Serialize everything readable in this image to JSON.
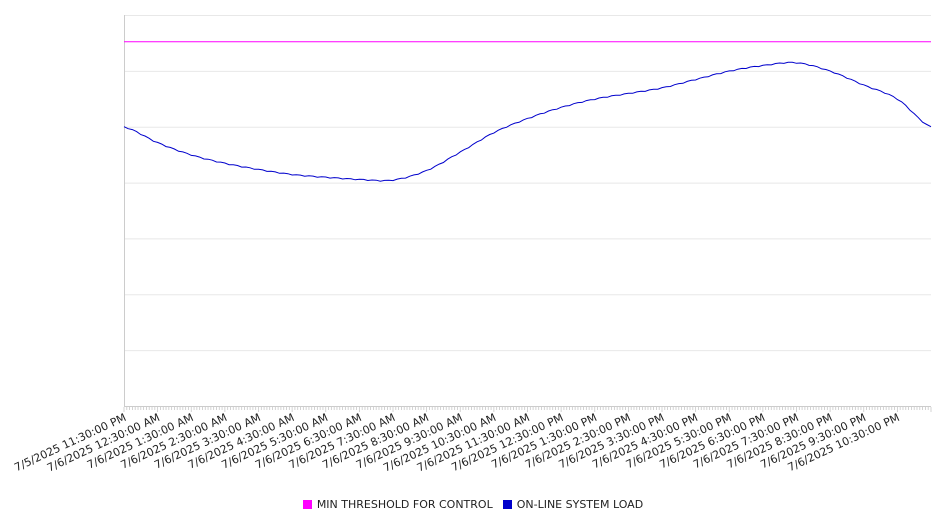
{
  "chart_data": {
    "type": "line",
    "title": "",
    "xlabel": "",
    "ylabel": "",
    "grid": true,
    "legend_position": "bottom",
    "ylim": [
      0,
      7
    ],
    "x_tick_labels": [
      "7/5/2025 11:30:00 PM",
      "7/6/2025 12:30:00 AM",
      "7/6/2025 1:30:00 AM",
      "7/6/2025 2:30:00 AM",
      "7/6/2025 3:30:00 AM",
      "7/6/2025 4:30:00 AM",
      "7/6/2025 5:30:00 AM",
      "7/6/2025 6:30:00 AM",
      "7/6/2025 7:30:00 AM",
      "7/6/2025 8:30:00 AM",
      "7/6/2025 9:30:00 AM",
      "7/6/2025 10:30:00 AM",
      "7/6/2025 11:30:00 AM",
      "7/6/2025 12:30:00 PM",
      "7/6/2025 1:30:00 PM",
      "7/6/2025 2:30:00 PM",
      "7/6/2025 3:30:00 PM",
      "7/6/2025 4:30:00 PM",
      "7/6/2025 5:30:00 PM",
      "7/6/2025 6:30:00 PM",
      "7/6/2025 7:30:00 PM",
      "7/6/2025 8:30:00 PM",
      "7/6/2025 9:30:00 PM",
      "7/6/2025 10:30:00 PM"
    ],
    "x": [
      "7/5/2025 11:30:00 PM",
      "7/6/2025 12:30:00 AM",
      "7/6/2025 1:30:00 AM",
      "7/6/2025 2:30:00 AM",
      "7/6/2025 3:30:00 AM",
      "7/6/2025 4:30:00 AM",
      "7/6/2025 5:30:00 AM",
      "7/6/2025 6:30:00 AM",
      "7/6/2025 7:30:00 AM",
      "7/6/2025 8:30:00 AM",
      "7/6/2025 9:30:00 AM",
      "7/6/2025 10:30:00 AM",
      "7/6/2025 11:30:00 AM",
      "7/6/2025 12:30:00 PM",
      "7/6/2025 1:30:00 PM",
      "7/6/2025 2:30:00 PM",
      "7/6/2025 3:30:00 PM",
      "7/6/2025 4:30:00 PM",
      "7/6/2025 5:30:00 PM",
      "7/6/2025 6:30:00 PM",
      "7/6/2025 7:30:00 PM",
      "7/6/2025 8:30:00 PM",
      "7/6/2025 9:30:00 PM",
      "7/6/2025 10:30:00 PM",
      "7/6/2025 11:30:00 PM"
    ],
    "series": [
      {
        "name": "MIN THRESHOLD FOR CONTROL",
        "color": "#ff00ff",
        "values": [
          6.52,
          6.52,
          6.52,
          6.52,
          6.52,
          6.52,
          6.52,
          6.52,
          6.52,
          6.52,
          6.52,
          6.52,
          6.52,
          6.52,
          6.52,
          6.52,
          6.52,
          6.52,
          6.52,
          6.52,
          6.52,
          6.52,
          6.52,
          6.52,
          6.52
        ]
      },
      {
        "name": "ON-LINE SYSTEM LOAD",
        "color": "#0000cc",
        "values": [
          5.0,
          4.72,
          4.5,
          4.35,
          4.24,
          4.15,
          4.1,
          4.06,
          4.05,
          4.22,
          4.55,
          4.9,
          5.15,
          5.35,
          5.5,
          5.6,
          5.7,
          5.85,
          6.0,
          6.1,
          6.15,
          6.0,
          5.75,
          5.5,
          5.0
        ]
      }
    ]
  }
}
